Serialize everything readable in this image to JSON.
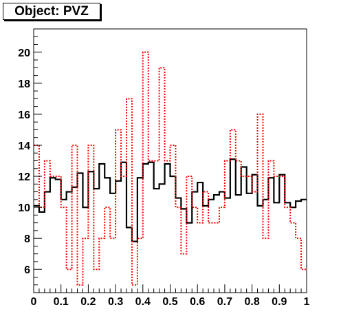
{
  "header": {
    "title": "Object: PVZ"
  },
  "chart_data": {
    "type": "line",
    "title": "Object: PVZ",
    "xlabel": "",
    "ylabel": "",
    "xlim": [
      0,
      1
    ],
    "ylim": [
      4.5,
      21.5
    ],
    "grid": false,
    "x_ticks": [
      "0",
      "0.1",
      "0.2",
      "0.3",
      "0.4",
      "0.5",
      "0.6",
      "0.7",
      "0.8",
      "0.9",
      "1"
    ],
    "y_ticks": [
      "6",
      "8",
      "10",
      "12",
      "14",
      "16",
      "18",
      "20"
    ],
    "bins": 50,
    "series": [
      {
        "style": "histogram-step-solid",
        "color": "#000000",
        "values": [
          10.1,
          9.7,
          11.0,
          11.9,
          11.8,
          10.5,
          11.0,
          11.3,
          12.2,
          10.0,
          12.3,
          11.2,
          12.8,
          11.9,
          10.9,
          11.7,
          12.9,
          8.7,
          7.8,
          11.9,
          12.8,
          12.9,
          11.2,
          11.5,
          12.8,
          12.0,
          10.6,
          9.9,
          9.0,
          11.0,
          11.6,
          10.1,
          10.5,
          10.8,
          11.0,
          10.6,
          13.1,
          10.8,
          12.6,
          10.9,
          12.1,
          10.1,
          10.5,
          11.9,
          10.3,
          12.1,
          10.3,
          10.0,
          10.4,
          10.5
        ]
      },
      {
        "style": "histogram-step-dotted",
        "color": "#ff0000",
        "values": [
          14.0,
          10.0,
          13.0,
          12.0,
          12.0,
          10.0,
          6.0,
          14.0,
          5.0,
          8.0,
          14.0,
          6.0,
          8.0,
          10.0,
          8.0,
          15.0,
          12.0,
          17.0,
          5.0,
          8.0,
          20.0,
          13.0,
          13.0,
          19.0,
          13.0,
          14.0,
          10.0,
          7.0,
          12.0,
          10.0,
          9.0,
          11.0,
          9.0,
          9.0,
          10.0,
          13.0,
          15.0,
          13.0,
          12.0,
          12.0,
          11.0,
          16.0,
          8.0,
          13.0,
          12.0,
          12.0,
          10.0,
          9.0,
          8.0,
          6.0
        ]
      }
    ]
  }
}
